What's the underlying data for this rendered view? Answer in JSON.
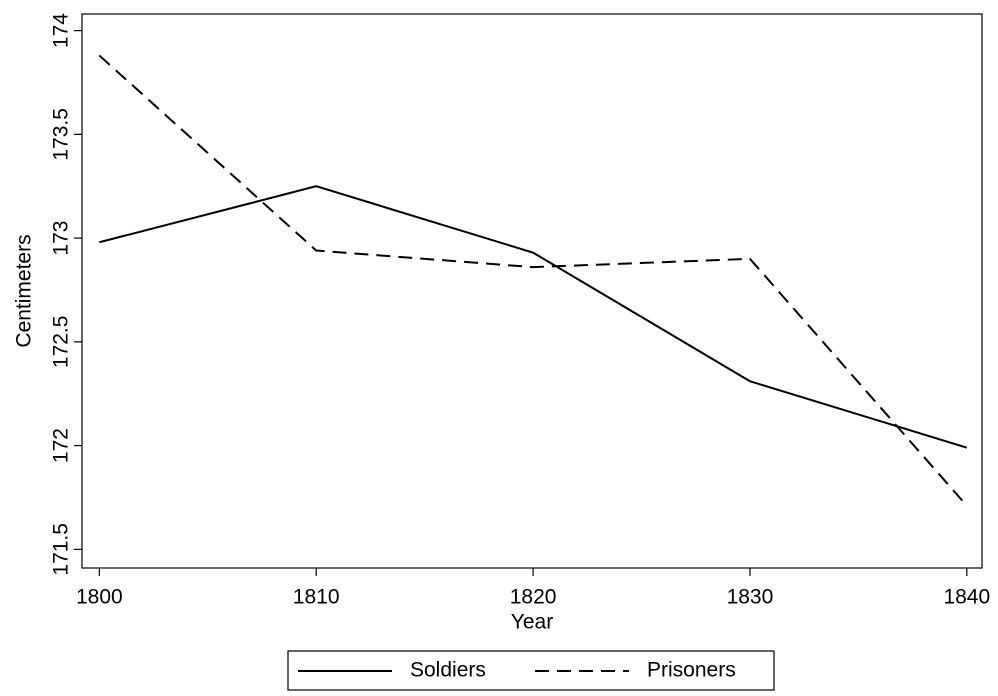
{
  "chart_data": {
    "type": "line",
    "xlabel": "Year",
    "ylabel": "Centimeters",
    "x": [
      1800,
      1810,
      1820,
      1830,
      1840
    ],
    "series": [
      {
        "name": "Soldiers",
        "color": "#000000",
        "dash": "solid",
        "values": [
          172.98,
          173.25,
          172.93,
          172.31,
          171.99
        ]
      },
      {
        "name": "Prisoners",
        "color": "#000000",
        "dash": "dashed",
        "values": [
          173.88,
          172.94,
          172.86,
          172.9,
          171.71
        ]
      }
    ],
    "xlim": [
      1799.2,
      1840.7
    ],
    "xticks": [
      1800,
      1810,
      1820,
      1830,
      1840
    ],
    "ylim": [
      171.41,
      174.08
    ],
    "yticks": [
      171.5,
      172,
      172.5,
      173,
      173.5,
      174
    ],
    "legend": "bottom"
  }
}
